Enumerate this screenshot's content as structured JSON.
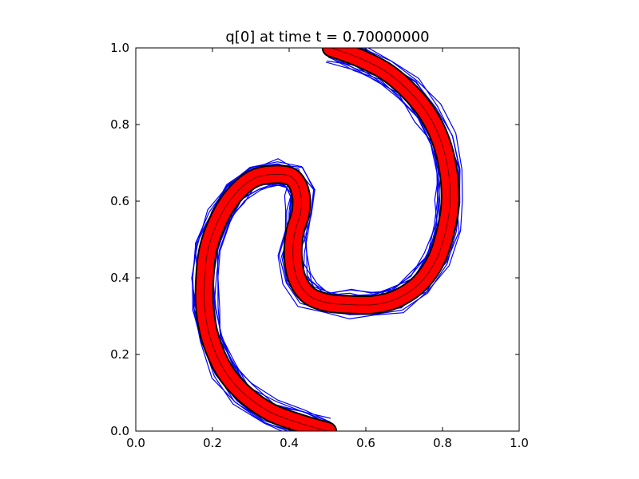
{
  "chart_data": {
    "type": "line",
    "title": "q[0] at time t =     0.70000000",
    "xlabel": "",
    "ylabel": "",
    "xlim": [
      0.0,
      1.0
    ],
    "ylim": [
      0.0,
      1.0
    ],
    "xticks": [
      0.0,
      0.2,
      0.4,
      0.6,
      0.8,
      1.0
    ],
    "yticks": [
      0.0,
      0.2,
      0.4,
      0.6,
      0.8,
      1.0
    ],
    "xtick_labels": [
      "0.0",
      "0.2",
      "0.4",
      "0.6",
      "0.8",
      "1.0"
    ],
    "ytick_labels": [
      "0.0",
      "0.2",
      "0.4",
      "0.6",
      "0.8",
      "1.0"
    ],
    "grid": false,
    "legend": "none",
    "centerline": [
      [
        0.5,
        0.0
      ],
      [
        0.43,
        0.02
      ],
      [
        0.35,
        0.05
      ],
      [
        0.28,
        0.1
      ],
      [
        0.23,
        0.16
      ],
      [
        0.195,
        0.24
      ],
      [
        0.18,
        0.32
      ],
      [
        0.18,
        0.4
      ],
      [
        0.19,
        0.48
      ],
      [
        0.22,
        0.56
      ],
      [
        0.26,
        0.62
      ],
      [
        0.31,
        0.66
      ],
      [
        0.37,
        0.67
      ],
      [
        0.41,
        0.66
      ],
      [
        0.43,
        0.62
      ],
      [
        0.43,
        0.57
      ],
      [
        0.415,
        0.52
      ],
      [
        0.41,
        0.46
      ],
      [
        0.42,
        0.4
      ],
      [
        0.45,
        0.355
      ],
      [
        0.5,
        0.335
      ],
      [
        0.56,
        0.33
      ],
      [
        0.62,
        0.33
      ],
      [
        0.68,
        0.345
      ],
      [
        0.74,
        0.385
      ],
      [
        0.785,
        0.45
      ],
      [
        0.81,
        0.53
      ],
      [
        0.82,
        0.6
      ],
      [
        0.815,
        0.68
      ],
      [
        0.795,
        0.76
      ],
      [
        0.76,
        0.83
      ],
      [
        0.71,
        0.89
      ],
      [
        0.65,
        0.94
      ],
      [
        0.58,
        0.975
      ],
      [
        0.51,
        1.0
      ]
    ],
    "series": [
      {
        "color": "#ff0000",
        "role": "filled-band"
      },
      {
        "color": "#000000",
        "role": "thin-line"
      },
      {
        "color": "#0000ff",
        "role": "contours",
        "count": 10
      }
    ]
  }
}
